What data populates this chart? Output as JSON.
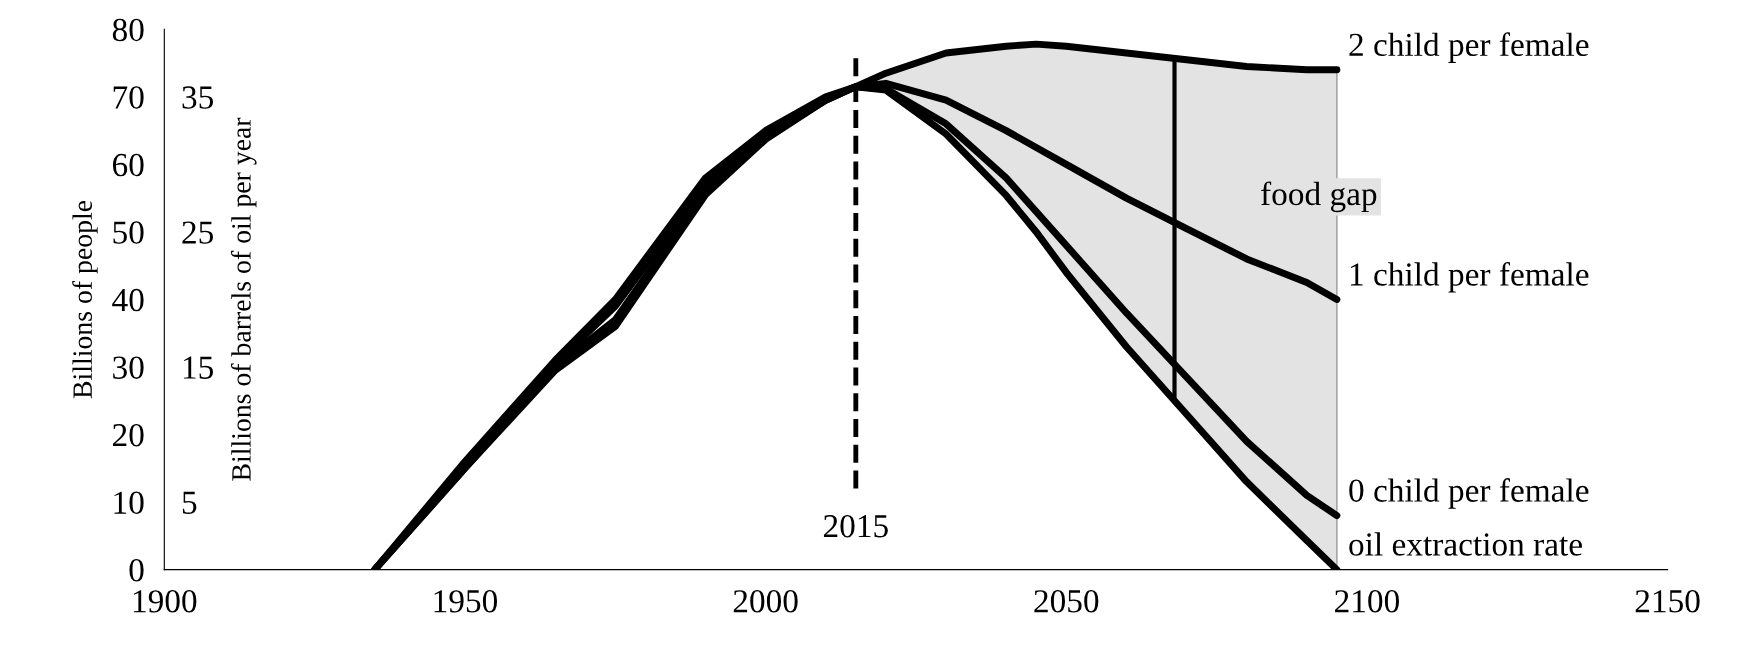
{
  "chart_data": {
    "type": "line",
    "ylabel": "Billions of people",
    "y2label": "Billions of barrels of oil per year",
    "x": [
      1935,
      1950,
      1965,
      1975,
      1990,
      2000,
      2010,
      2015,
      2020,
      2030,
      2040,
      2045,
      2050,
      2060,
      2070,
      2080,
      2090,
      2095
    ],
    "series": [
      {
        "name": "2 child per female",
        "color": "#000000",
        "values": [
          0,
          16,
          31,
          40,
          58,
          65,
          70,
          71.5,
          73.5,
          76.5,
          77.5,
          77.8,
          77.5,
          76.5,
          75.5,
          74.5,
          74,
          74
        ],
        "lower": [
          null,
          null,
          null,
          null,
          null,
          null,
          null,
          71.5,
          71,
          64.5,
          55.4,
          50,
          44,
          33,
          23,
          13,
          4.3,
          0
        ],
        "upper": [
          null,
          null,
          null,
          null,
          null,
          null,
          null,
          71.5,
          73.5,
          76.5,
          77.5,
          77.8,
          77.5,
          76.5,
          75.5,
          74.5,
          74,
          74
        ]
      },
      {
        "name": "1 child per female",
        "color": "#000000",
        "values": [
          0,
          15.5,
          30.5,
          39,
          57,
          64.5,
          69.8,
          71.5,
          72,
          69.5,
          65,
          62.5,
          60,
          55,
          50.5,
          46,
          42.5,
          40
        ]
      },
      {
        "name": "0 child per female",
        "color": "#000000",
        "values": [
          0,
          15,
          30,
          37,
          56,
          64,
          69.5,
          71.5,
          71.2,
          66,
          58,
          53,
          48,
          38,
          28.5,
          19,
          11,
          8
        ]
      },
      {
        "name": "oil extraction rate",
        "color": "#000000",
        "values": [
          0,
          15,
          29.5,
          36,
          55.5,
          63.7,
          69.5,
          71.5,
          71,
          64.5,
          55.4,
          50,
          44,
          33,
          23,
          13,
          4.3,
          0
        ]
      }
    ],
    "xlim": [
      1900,
      2150
    ],
    "xticks": [
      1900,
      1950,
      2000,
      2050,
      2100,
      2150
    ],
    "ylim": [
      0,
      80
    ],
    "yticks": [
      0,
      10,
      20,
      30,
      40,
      50,
      60,
      70,
      80
    ],
    "y2lim": [
      0,
      40
    ],
    "y2ticks": [
      5,
      15,
      25,
      35
    ],
    "ref_lines": [
      {
        "axis": "x",
        "value": 2015,
        "label": "2015",
        "line_style": "dashed"
      },
      {
        "axis": "x",
        "value": 2068,
        "line_style": "solid"
      }
    ],
    "annotations": [
      "food gap"
    ],
    "legend": false,
    "grid": false,
    "marker": "none",
    "line_style": "solid"
  }
}
